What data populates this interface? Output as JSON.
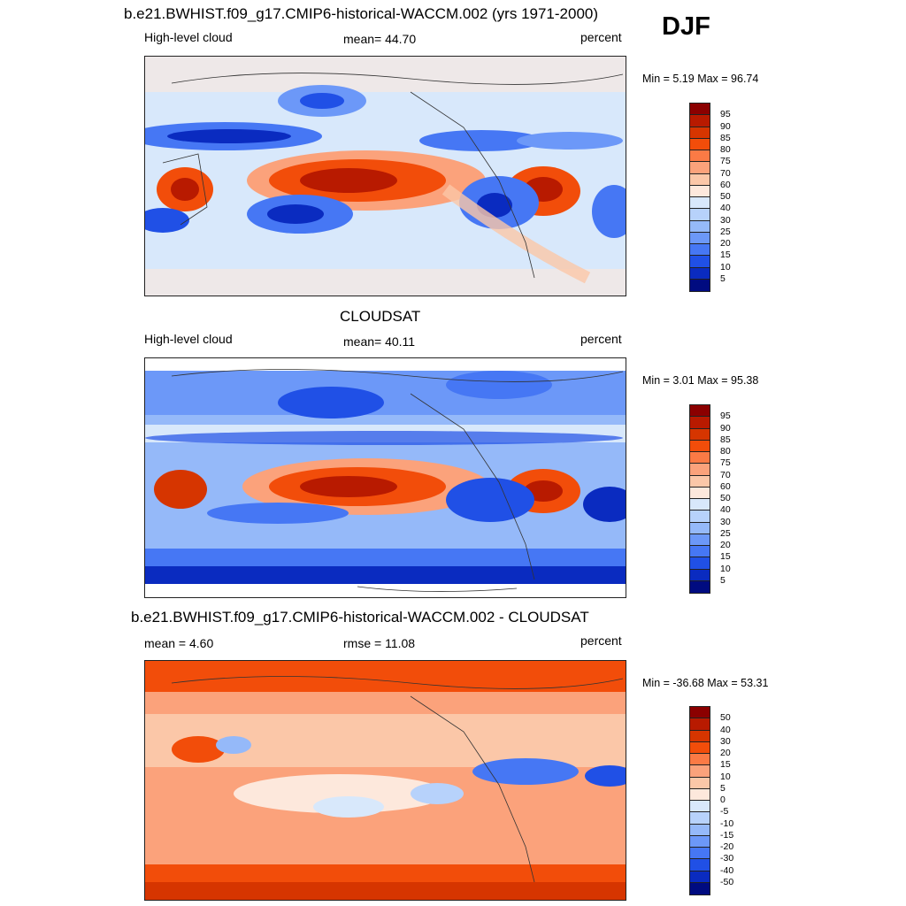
{
  "season": "DJF",
  "panels": [
    {
      "title": "b.e21.BWHIST.f09_g17.CMIP6-historical-WACCM.002 (yrs 1971-2000)",
      "left": "High-level cloud",
      "center": "mean=  44.70",
      "right": "percent",
      "minmax": "Min =   5.19 Max =  96.74",
      "legend_labels": [
        "95",
        "90",
        "85",
        "80",
        "75",
        "70",
        "60",
        "50",
        "40",
        "30",
        "25",
        "20",
        "15",
        "10",
        "5"
      ],
      "legend_colors": [
        "#8b0000",
        "#b81a00",
        "#d63500",
        "#f24d0a",
        "#fb7a45",
        "#fba27b",
        "#fbc7a8",
        "#fde8dc",
        "#d8e8fb",
        "#b7d2fb",
        "#95b9f9",
        "#6c98f8",
        "#4677f4",
        "#2050e6",
        "#0a2bc0",
        "#000b80"
      ]
    },
    {
      "title": "CLOUDSAT",
      "left": "High-level cloud",
      "center": "mean=  40.11",
      "right": "percent",
      "minmax": "Min =   3.01 Max =  95.38",
      "legend_labels": [
        "95",
        "90",
        "85",
        "80",
        "75",
        "70",
        "60",
        "50",
        "40",
        "30",
        "25",
        "20",
        "15",
        "10",
        "5"
      ],
      "legend_colors": [
        "#8b0000",
        "#b81a00",
        "#d63500",
        "#f24d0a",
        "#fb7a45",
        "#fba27b",
        "#fbc7a8",
        "#fde8dc",
        "#d8e8fb",
        "#b7d2fb",
        "#95b9f9",
        "#6c98f8",
        "#4677f4",
        "#2050e6",
        "#0a2bc0",
        "#000b80"
      ]
    },
    {
      "title": "b.e21.BWHIST.f09_g17.CMIP6-historical-WACCM.002 - CLOUDSAT",
      "left": "mean =   4.60",
      "center": "rmse =  11.08",
      "right": "percent",
      "minmax": "Min = -36.68 Max =  53.31",
      "legend_labels": [
        "50",
        "40",
        "30",
        "20",
        "15",
        "10",
        "5",
        "0",
        "-5",
        "-10",
        "-15",
        "-20",
        "-30",
        "-40",
        "-50"
      ],
      "legend_colors": [
        "#8b0000",
        "#b81a00",
        "#d63500",
        "#f24d0a",
        "#fb7a45",
        "#fba27b",
        "#fbc7a8",
        "#fde8dc",
        "#d8e8fb",
        "#b7d2fb",
        "#95b9f9",
        "#6c98f8",
        "#4677f4",
        "#2050e6",
        "#0a2bc0",
        "#000b80"
      ]
    }
  ]
}
